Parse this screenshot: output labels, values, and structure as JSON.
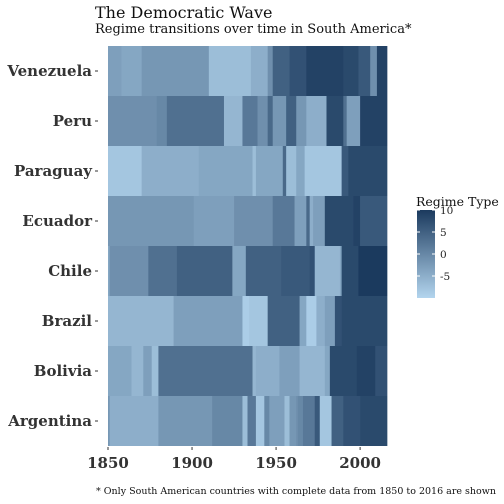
{
  "title": "The Democratic Wave",
  "subtitle": "Regime transitions over time in South America*",
  "caption": "* Only South American countries with complete data from 1850 to 2016 are shown",
  "chart_data": {
    "type": "heatmap",
    "x_range": [
      1850,
      2016
    ],
    "x_ticks": [
      1850,
      1900,
      1950,
      2000
    ],
    "categories": [
      "Argentina",
      "Bolivia",
      "Brazil",
      "Chile",
      "Ecuador",
      "Paraguay",
      "Peru",
      "Venezuela"
    ],
    "legend": {
      "title": "Regime Type",
      "range": [
        -10,
        10
      ],
      "ticks": [
        10,
        5,
        0,
        -5
      ],
      "color_low": "#b3d5ee",
      "color_high": "#1b3a5e"
    },
    "series": [
      {
        "name": "Argentina",
        "segments": [
          [
            1850,
            1851,
            -2
          ],
          [
            1851,
            1880,
            -5
          ],
          [
            1880,
            1912,
            -2
          ],
          [
            1912,
            1930,
            0
          ],
          [
            1930,
            1933,
            -7
          ],
          [
            1933,
            1938,
            2
          ],
          [
            1938,
            1943,
            -8
          ],
          [
            1943,
            1946,
            0
          ],
          [
            1946,
            1955,
            -3
          ],
          [
            1955,
            1958,
            -7
          ],
          [
            1958,
            1962,
            -2
          ],
          [
            1962,
            1963,
            -1
          ],
          [
            1963,
            1966,
            0
          ],
          [
            1966,
            1973,
            2
          ],
          [
            1973,
            1976,
            6
          ],
          [
            1976,
            1983,
            -8
          ],
          [
            1983,
            1990,
            5
          ],
          [
            1990,
            2000,
            7
          ],
          [
            2000,
            2016,
            8
          ]
        ]
      },
      {
        "name": "Bolivia",
        "segments": [
          [
            1850,
            1864,
            -4
          ],
          [
            1864,
            1871,
            -6
          ],
          [
            1871,
            1876,
            -3
          ],
          [
            1876,
            1880,
            -7
          ],
          [
            1880,
            1936,
            3
          ],
          [
            1936,
            1938,
            -6
          ],
          [
            1938,
            1952,
            -5
          ],
          [
            1952,
            1964,
            -3
          ],
          [
            1964,
            1969,
            -6
          ],
          [
            1969,
            1979,
            -6
          ],
          [
            1979,
            1982,
            -4
          ],
          [
            1982,
            1998,
            8
          ],
          [
            1998,
            2009,
            9
          ],
          [
            2009,
            2016,
            7
          ]
        ]
      },
      {
        "name": "Brazil",
        "segments": [
          [
            1850,
            1889,
            -6
          ],
          [
            1889,
            1930,
            -3
          ],
          [
            1930,
            1934,
            -9
          ],
          [
            1934,
            1945,
            -8
          ],
          [
            1945,
            1964,
            5
          ],
          [
            1964,
            1968,
            -4
          ],
          [
            1968,
            1974,
            -9
          ],
          [
            1974,
            1979,
            -5
          ],
          [
            1979,
            1985,
            -3
          ],
          [
            1985,
            1989,
            7
          ],
          [
            1989,
            2016,
            8
          ]
        ]
      },
      {
        "name": "Chile",
        "segments": [
          [
            1850,
            1851,
            -4
          ],
          [
            1851,
            1874,
            -1
          ],
          [
            1874,
            1891,
            3
          ],
          [
            1891,
            1924,
            5
          ],
          [
            1924,
            1932,
            -4
          ],
          [
            1932,
            1953,
            5
          ],
          [
            1953,
            1970,
            6
          ],
          [
            1970,
            1973,
            7
          ],
          [
            1973,
            1988,
            -6
          ],
          [
            1988,
            1989,
            -4
          ],
          [
            1989,
            1999,
            8
          ],
          [
            1999,
            2016,
            10
          ]
        ]
      },
      {
        "name": "Ecuador",
        "segments": [
          [
            1850,
            1901,
            -2
          ],
          [
            1901,
            1925,
            -3
          ],
          [
            1925,
            1948,
            -1
          ],
          [
            1948,
            1961,
            2
          ],
          [
            1961,
            1968,
            -3
          ],
          [
            1968,
            1970,
            4
          ],
          [
            1970,
            1972,
            -5
          ],
          [
            1972,
            1979,
            -3
          ],
          [
            1979,
            1996,
            8
          ],
          [
            1996,
            2000,
            9
          ],
          [
            2000,
            2016,
            6
          ]
        ]
      },
      {
        "name": "Paraguay",
        "segments": [
          [
            1850,
            1870,
            -8
          ],
          [
            1870,
            1904,
            -5
          ],
          [
            1904,
            1936,
            -4
          ],
          [
            1936,
            1938,
            -7
          ],
          [
            1938,
            1954,
            -4
          ],
          [
            1954,
            1956,
            4
          ],
          [
            1956,
            1962,
            -7
          ],
          [
            1962,
            1967,
            -4
          ],
          [
            1967,
            1989,
            -8
          ],
          [
            1989,
            1993,
            6
          ],
          [
            1993,
            2016,
            8
          ]
        ]
      },
      {
        "name": "Peru",
        "segments": [
          [
            1850,
            1879,
            -1
          ],
          [
            1879,
            1885,
            0
          ],
          [
            1885,
            1919,
            3
          ],
          [
            1919,
            1930,
            -6
          ],
          [
            1930,
            1939,
            2
          ],
          [
            1939,
            1945,
            -1
          ],
          [
            1945,
            1948,
            4
          ],
          [
            1948,
            1956,
            -2
          ],
          [
            1956,
            1962,
            5
          ],
          [
            1962,
            1968,
            -2
          ],
          [
            1968,
            1980,
            -5
          ],
          [
            1980,
            1990,
            8
          ],
          [
            1990,
            1992,
            3
          ],
          [
            1992,
            2000,
            -3
          ],
          [
            2000,
            2016,
            9
          ]
        ]
      },
      {
        "name": "Venezuela",
        "segments": [
          [
            1850,
            1858,
            -3
          ],
          [
            1858,
            1870,
            -4
          ],
          [
            1870,
            1910,
            -2
          ],
          [
            1910,
            1935,
            -7
          ],
          [
            1935,
            1945,
            -5
          ],
          [
            1945,
            1948,
            -1
          ],
          [
            1948,
            1958,
            5
          ],
          [
            1958,
            1968,
            7
          ],
          [
            1968,
            1990,
            9
          ],
          [
            1990,
            1999,
            8
          ],
          [
            1999,
            2006,
            6
          ],
          [
            2006,
            2010,
            -1
          ],
          [
            2010,
            2016,
            9
          ]
        ]
      }
    ]
  }
}
